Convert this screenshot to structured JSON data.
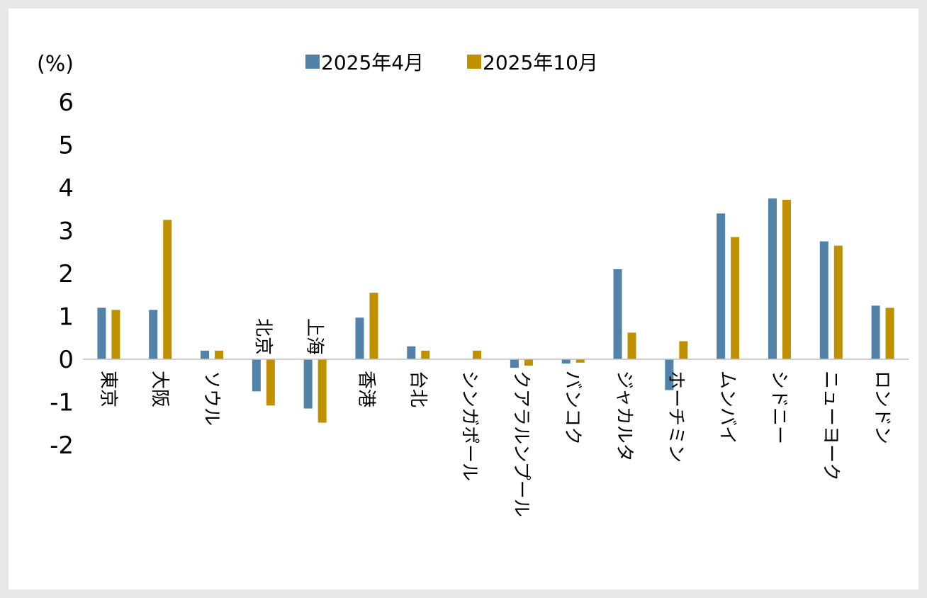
{
  "chart_data": {
    "type": "bar",
    "unit_label": "(%)",
    "categories": [
      "東京",
      "大阪",
      "ソウル",
      "北京",
      "上海",
      "香港",
      "台北",
      "シンガポール",
      "クアラルンプール",
      "バンコク",
      "ジャカルタ",
      "ホーチミン",
      "ムンバイ",
      "シドニー",
      "ニューヨーク",
      "ロンドン"
    ],
    "series": [
      {
        "name": "2025年4月",
        "color": "#5282a8",
        "values": [
          1.2,
          1.15,
          0.2,
          -0.75,
          -1.15,
          0.97,
          0.3,
          0.0,
          -0.2,
          -0.1,
          2.1,
          -0.72,
          3.4,
          3.75,
          2.75,
          1.25
        ]
      },
      {
        "name": "2025年10月",
        "color": "#bf9000",
        "values": [
          1.15,
          3.25,
          0.2,
          -1.08,
          -1.48,
          1.55,
          0.2,
          0.2,
          -0.15,
          -0.08,
          0.62,
          0.42,
          2.85,
          3.72,
          2.65,
          1.2
        ]
      }
    ],
    "y_ticks": [
      "6",
      "5",
      "4",
      "3",
      "2",
      "1",
      "0",
      "-1",
      "-2"
    ],
    "ylim": [
      -2,
      6
    ],
    "grid": false,
    "legend_position": "top-center"
  }
}
